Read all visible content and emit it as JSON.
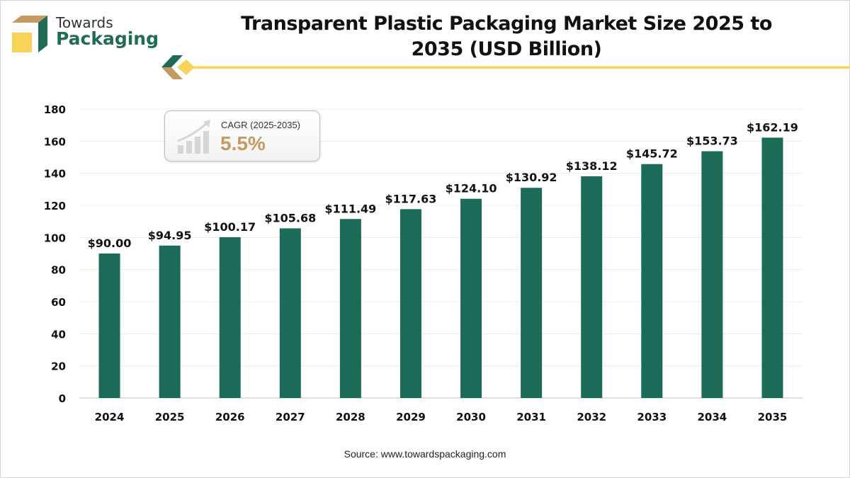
{
  "brand": {
    "line1": "Towards",
    "line2": "Packaging",
    "colors": {
      "green": "#1f6b55",
      "gold": "#f7d35a",
      "tan": "#c49a62"
    }
  },
  "title": "Transparent Plastic Packaging Market Size 2025 to 2035 (USD Billion)",
  "cagr": {
    "label": "CAGR (2025-2035)",
    "value": "5.5%",
    "icon": "growth-chart-icon"
  },
  "source": "Source: www.towardspackaging.com",
  "chart_data": {
    "type": "bar",
    "title": "Transparent Plastic Packaging Market Size 2025 to 2035 (USD Billion)",
    "categories": [
      "2024",
      "2025",
      "2026",
      "2027",
      "2028",
      "2029",
      "2030",
      "2031",
      "2032",
      "2033",
      "2034",
      "2035"
    ],
    "values": [
      90.0,
      94.95,
      100.17,
      105.68,
      111.49,
      117.63,
      124.1,
      130.92,
      138.12,
      145.72,
      153.73,
      162.19
    ],
    "data_labels": [
      "$90.00",
      "$94.95",
      "$100.17",
      "$105.68",
      "$111.49",
      "$117.63",
      "$124.10",
      "$130.92",
      "$138.12",
      "$145.72",
      "$153.73",
      "$162.19"
    ],
    "yticks": [
      0,
      20,
      40,
      60,
      80,
      100,
      120,
      140,
      160,
      180
    ],
    "ylim": [
      0,
      180
    ],
    "grid": true,
    "bar_color": "#1b6b58",
    "xlabel": "",
    "ylabel": ""
  }
}
